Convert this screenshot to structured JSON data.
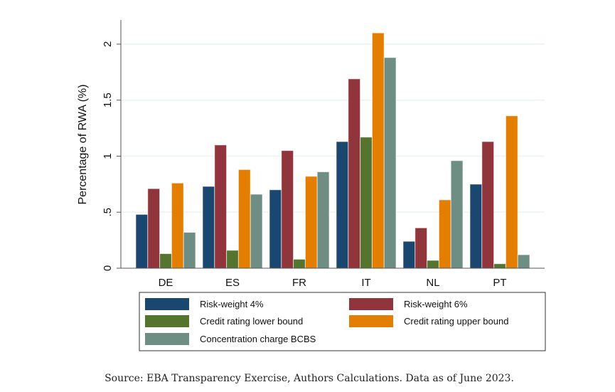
{
  "chart_data": {
    "type": "bar",
    "title": "",
    "xlabel": "",
    "ylabel": "Percentage of RWA (%)",
    "ylim": [
      0,
      2.2
    ],
    "yticks": [
      0,
      0.5,
      1,
      1.5,
      2
    ],
    "ytick_labels": [
      "0",
      ".5",
      "1",
      "1.5",
      "2"
    ],
    "grid": true,
    "categories": [
      "DE",
      "ES",
      "FR",
      "IT",
      "NL",
      "PT"
    ],
    "series": [
      {
        "name": "Risk-weight 4%",
        "color": "#1a476f",
        "values": [
          0.48,
          0.73,
          0.7,
          1.13,
          0.24,
          0.75
        ]
      },
      {
        "name": "Risk-weight 6%",
        "color": "#90353b",
        "values": [
          0.71,
          1.1,
          1.05,
          1.69,
          0.36,
          1.13
        ]
      },
      {
        "name": "Credit rating lower bound",
        "color": "#55752f",
        "values": [
          0.13,
          0.16,
          0.08,
          1.17,
          0.07,
          0.04
        ]
      },
      {
        "name": "Credit rating upper bound",
        "color": "#e37e00",
        "values": [
          0.76,
          0.88,
          0.82,
          2.1,
          0.61,
          1.36
        ]
      },
      {
        "name": "Concentration charge BCBS",
        "color": "#6e8e84",
        "values": [
          0.32,
          0.66,
          0.86,
          1.88,
          0.96,
          0.12
        ]
      }
    ],
    "legend_position": "bottom",
    "legend_columns": 2,
    "source": "Source: EBA Transparency Exercise, Authors Calculations. Data as of June 2023."
  }
}
